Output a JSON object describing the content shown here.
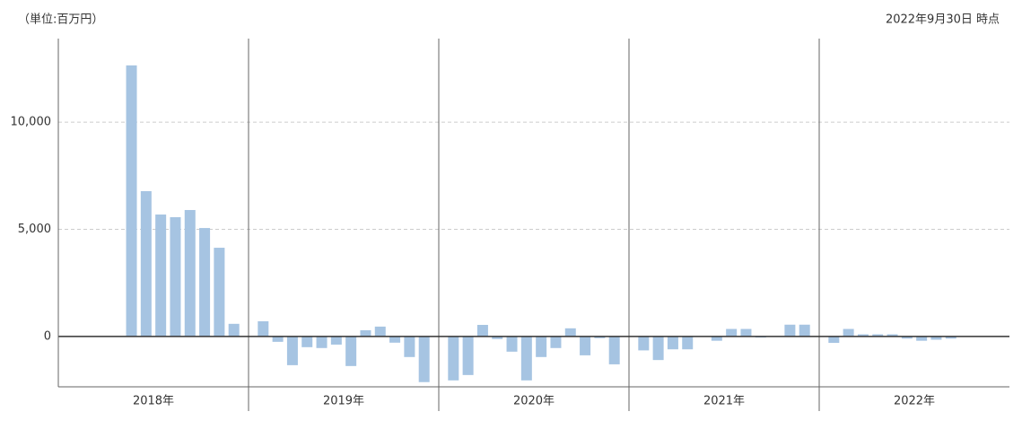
{
  "chart_data": {
    "type": "bar",
    "unit_label": "（単位:百万円）",
    "as_of": "2022年9月30日 時点",
    "color": "#a6c4e2",
    "ylim": [
      -2350,
      13900
    ],
    "yticks": [
      0,
      {
        "value": 5000,
        "label": "5,000"
      },
      {
        "value": 10000,
        "label": "10,000"
      }
    ],
    "grid": true,
    "groups": [
      {
        "label": "2018年",
        "values": [
          null,
          null,
          null,
          null,
          12650,
          6780,
          5690,
          5565,
          5900,
          5060,
          4140,
          590
        ]
      },
      {
        "label": "2019年",
        "values": [
          710,
          -250,
          -1340,
          -500,
          -540,
          -380,
          -1380,
          290,
          460,
          -290,
          -960,
          -2130
        ]
      },
      {
        "label": "2020年",
        "values": [
          -2050,
          -1800,
          540,
          -120,
          -710,
          -2050,
          -960,
          -540,
          380,
          -880,
          -80,
          -1300
        ]
      },
      {
        "label": "2021年",
        "values": [
          -650,
          -1100,
          -600,
          -600,
          0,
          -200,
          350,
          350,
          -50,
          0,
          550,
          550
        ]
      },
      {
        "label": "2022年",
        "values": [
          -300,
          350,
          100,
          100,
          100,
          -100,
          -200,
          -150,
          -100,
          null,
          null,
          null
        ]
      }
    ]
  }
}
